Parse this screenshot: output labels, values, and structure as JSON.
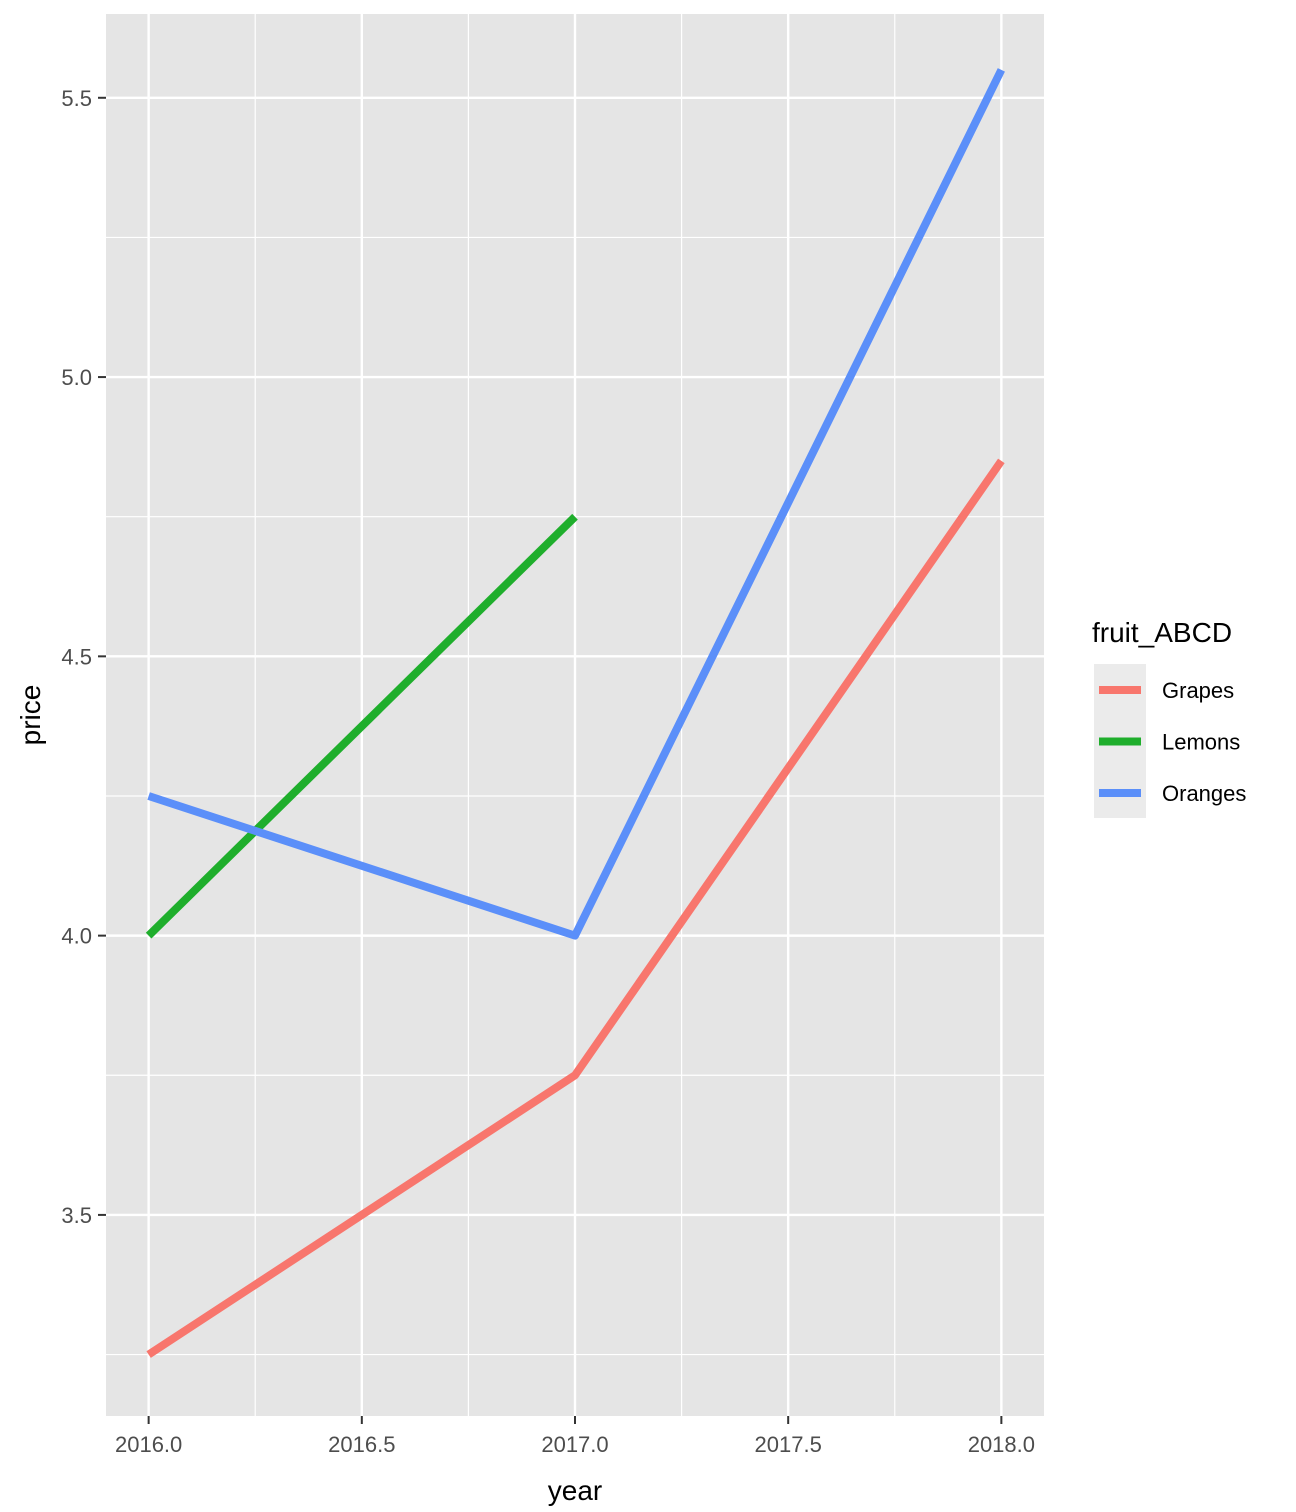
{
  "chart_data": {
    "type": "line",
    "title": "",
    "xlabel": "year",
    "ylabel": "price",
    "xlim": [
      2015.9,
      2018.1
    ],
    "ylim": [
      3.14,
      5.65
    ],
    "x_ticks": [
      "2016.0",
      "2016.5",
      "2017.0",
      "2017.5",
      "2018.0"
    ],
    "y_ticks": [
      "3.5",
      "4.0",
      "4.5",
      "5.0",
      "5.5"
    ],
    "grid": true,
    "panel_background": "#e5e5e5",
    "legend": {
      "title": "fruit_ABCD",
      "position": "right"
    },
    "series": [
      {
        "name": "Grapes",
        "color": "#f8766d",
        "x": [
          2016,
          2017,
          2018
        ],
        "y": [
          3.25,
          3.75,
          4.85
        ]
      },
      {
        "name": "Lemons",
        "color": "#1fae2c",
        "x": [
          2016,
          2017
        ],
        "y": [
          4.0,
          4.75
        ]
      },
      {
        "name": "Oranges",
        "color": "#5b8ff9",
        "x": [
          2016,
          2017,
          2018
        ],
        "y": [
          4.25,
          4.0,
          5.55
        ]
      }
    ]
  }
}
